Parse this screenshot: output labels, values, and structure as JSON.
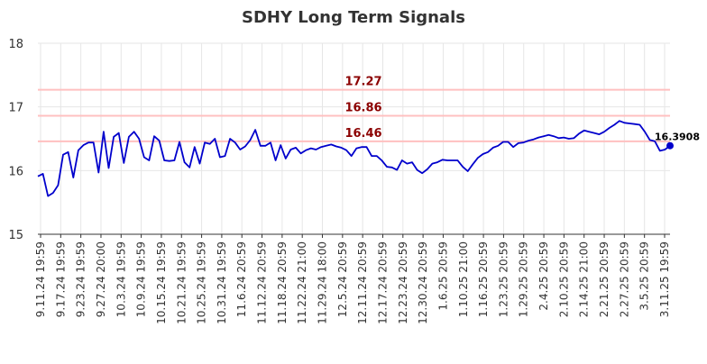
{
  "chart_data": {
    "type": "line",
    "title": "SDHY Long Term Signals",
    "xlabel": "",
    "ylabel": "",
    "ylim": [
      15,
      18
    ],
    "yticks": [
      "15",
      "16",
      "17",
      "18"
    ],
    "grid": true,
    "x_tick_labels": [
      "9.11.24 19:59",
      "9.17.24 19:59",
      "9.23.24 19:59",
      "9.27.24 20:00",
      "10.3.24 19:59",
      "10.9.24 19:59",
      "10.15.24 19:59",
      "10.21.24 19:59",
      "10.25.24 19:59",
      "10.31.24 19:59",
      "11.6.24 20:59",
      "11.12.24 20:59",
      "11.18.24 20:59",
      "11.22.24 21:00",
      "11.29.24 18:00",
      "12.5.24 20:59",
      "12.11.24 20:59",
      "12.17.24 20:59",
      "12.23.24 20:59",
      "12.30.24 20:59",
      "1.6.25 20:59",
      "1.10.25 21:00",
      "1.16.25 20:59",
      "1.23.25 20:59",
      "1.29.25 20:59",
      "2.4.25 20:59",
      "2.10.25 20:59",
      "2.14.25 21:00",
      "2.21.25 20:59",
      "2.27.25 20:59",
      "3.5.25 20:59",
      "3.11.25 19:59"
    ],
    "series": [
      {
        "values": [
          15.91,
          15.95,
          15.6,
          15.65,
          15.77,
          16.25,
          16.29,
          15.89,
          16.32,
          16.4,
          16.44,
          16.44,
          15.97,
          16.61,
          16.04,
          16.53,
          16.59,
          16.12,
          16.53,
          16.61,
          16.5,
          16.21,
          16.16,
          16.54,
          16.47,
          16.16,
          16.15,
          16.16,
          16.45,
          16.13,
          16.05,
          16.37,
          16.11,
          16.44,
          16.42,
          16.5,
          16.21,
          16.23,
          16.5,
          16.44,
          16.33,
          16.38,
          16.48,
          16.64,
          16.39,
          16.39,
          16.44,
          16.16,
          16.4,
          16.19,
          16.33,
          16.36,
          16.27,
          16.32,
          16.35,
          16.33,
          16.37,
          16.39,
          16.41,
          16.38,
          16.36,
          16.32,
          16.23,
          16.35,
          16.37,
          16.37,
          16.23,
          16.23,
          16.16,
          16.06,
          16.05,
          16.01,
          16.16,
          16.11,
          16.13,
          16.01,
          15.96,
          16.02,
          16.11,
          16.13,
          16.17,
          16.16,
          16.16,
          16.16,
          16.06,
          15.99,
          16.1,
          16.2,
          16.26,
          16.29,
          16.36,
          16.39,
          16.45,
          16.45,
          16.37,
          16.43,
          16.44,
          16.47,
          16.49,
          16.52,
          16.54,
          16.56,
          16.54,
          16.51,
          16.52,
          16.5,
          16.51,
          16.58,
          16.63,
          16.61,
          16.59,
          16.57,
          16.61,
          16.67,
          16.72,
          16.78,
          16.75,
          16.74,
          16.73,
          16.72,
          16.61,
          16.48,
          16.46,
          16.31,
          16.33,
          16.3908
        ]
      }
    ],
    "signal_lines": [
      {
        "value": 17.27,
        "label": "17.27"
      },
      {
        "value": 16.86,
        "label": "16.86"
      },
      {
        "value": 16.46,
        "label": "16.46"
      }
    ],
    "last_value_label": "16.3908",
    "colors": {
      "line": "#0000cc",
      "signal": "#ffc0c0",
      "signal_text": "#8b0000",
      "grid": "#e6e6e6",
      "title": "#333333"
    }
  }
}
